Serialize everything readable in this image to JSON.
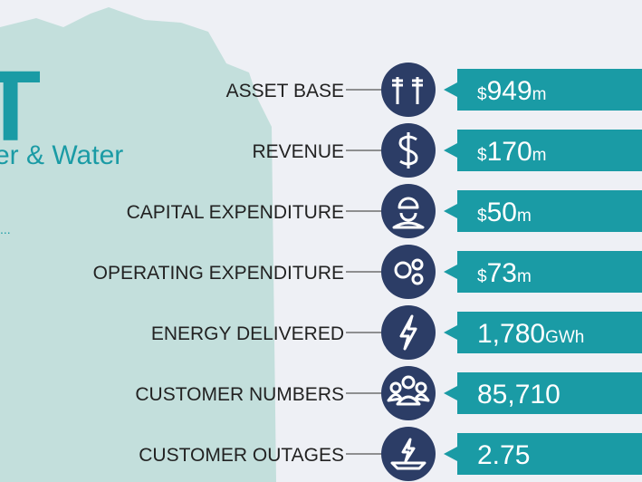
{
  "header": {
    "letter": "T",
    "subtitle": "er & Water",
    "dots": "..."
  },
  "rows": [
    {
      "label": "ASSET BASE",
      "prefix": "$",
      "value": "949",
      "unit": "m"
    },
    {
      "label": "REVENUE",
      "prefix": "$",
      "value": "170",
      "unit": "m"
    },
    {
      "label": "CAPITAL EXPENDITURE",
      "prefix": "$",
      "value": "50",
      "unit": "m"
    },
    {
      "label": "OPERATING EXPENDITURE",
      "prefix": "$",
      "value": "73",
      "unit": "m"
    },
    {
      "label": "ENERGY DELIVERED",
      "value": "1,780",
      "unit": "GWh"
    },
    {
      "label": "CUSTOMER NUMBERS",
      "value": "85,710"
    },
    {
      "label": "CUSTOMER OUTAGES",
      "value": "2.75"
    }
  ]
}
